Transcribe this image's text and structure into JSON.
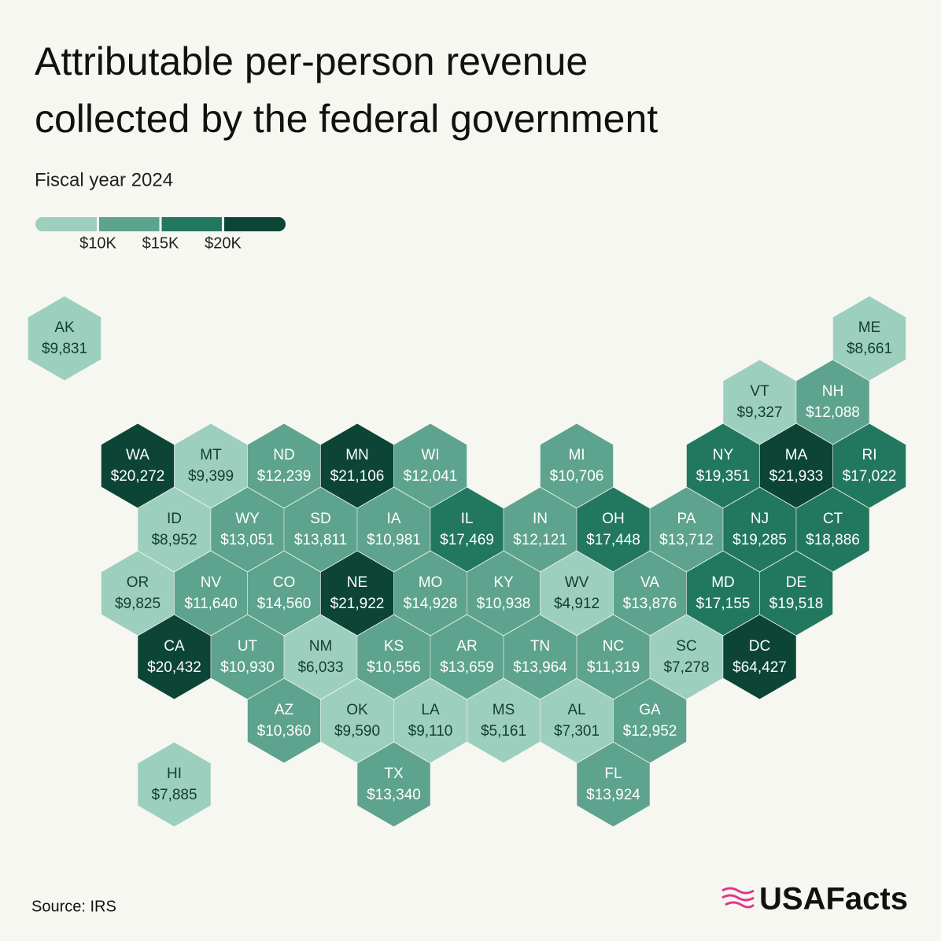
{
  "chart_data": {
    "type": "hexmap",
    "title": [
      "Attributable per-person revenue",
      "collected by the federal government"
    ],
    "subtitle": "Fiscal year 2024",
    "source": "Source: IRS",
    "brand": "USAFacts",
    "legend_ticks": [
      {
        "value": 10000,
        "label": "$10K"
      },
      {
        "value": 15000,
        "label": "$15K"
      },
      {
        "value": 20000,
        "label": "$20K"
      }
    ],
    "colors": [
      "#9dcfbf",
      "#5ea38e",
      "#22785f",
      "#0c4535"
    ],
    "states": [
      {
        "label": "AK",
        "value": 9831,
        "value_label": "$9,831"
      },
      {
        "label": "ME",
        "value": 8661,
        "value_label": "$8,661"
      },
      {
        "label": "VT",
        "value": 9327,
        "value_label": "$9,327"
      },
      {
        "label": "NH",
        "value": 12088,
        "value_label": "$12,088"
      },
      {
        "label": "WA",
        "value": 20272,
        "value_label": "$20,272"
      },
      {
        "label": "MT",
        "value": 9399,
        "value_label": "$9,399"
      },
      {
        "label": "ND",
        "value": 12239,
        "value_label": "$12,239"
      },
      {
        "label": "MN",
        "value": 21106,
        "value_label": "$21,106"
      },
      {
        "label": "WI",
        "value": 12041,
        "value_label": "$12,041"
      },
      {
        "label": "MI",
        "value": 10706,
        "value_label": "$10,706"
      },
      {
        "label": "NY",
        "value": 19351,
        "value_label": "$19,351"
      },
      {
        "label": "MA",
        "value": 21933,
        "value_label": "$21,933"
      },
      {
        "label": "RI",
        "value": 17022,
        "value_label": "$17,022"
      },
      {
        "label": "ID",
        "value": 8952,
        "value_label": "$8,952"
      },
      {
        "label": "WY",
        "value": 13051,
        "value_label": "$13,051"
      },
      {
        "label": "SD",
        "value": 13811,
        "value_label": "$13,811"
      },
      {
        "label": "IA",
        "value": 10981,
        "value_label": "$10,981"
      },
      {
        "label": "IL",
        "value": 17469,
        "value_label": "$17,469"
      },
      {
        "label": "IN",
        "value": 12121,
        "value_label": "$12,121"
      },
      {
        "label": "OH",
        "value": 17448,
        "value_label": "$17,448"
      },
      {
        "label": "PA",
        "value": 13712,
        "value_label": "$13,712"
      },
      {
        "label": "NJ",
        "value": 19285,
        "value_label": "$19,285"
      },
      {
        "label": "CT",
        "value": 18886,
        "value_label": "$18,886"
      },
      {
        "label": "OR",
        "value": 9825,
        "value_label": "$9,825"
      },
      {
        "label": "NV",
        "value": 11640,
        "value_label": "$11,640"
      },
      {
        "label": "CO",
        "value": 14560,
        "value_label": "$14,560"
      },
      {
        "label": "NE",
        "value": 21922,
        "value_label": "$21,922"
      },
      {
        "label": "MO",
        "value": 14928,
        "value_label": "$14,928"
      },
      {
        "label": "KY",
        "value": 10938,
        "value_label": "$10,938"
      },
      {
        "label": "WV",
        "value": 4912,
        "value_label": "$4,912"
      },
      {
        "label": "VA",
        "value": 13876,
        "value_label": "$13,876"
      },
      {
        "label": "MD",
        "value": 17155,
        "value_label": "$17,155"
      },
      {
        "label": "DE",
        "value": 19518,
        "value_label": "$19,518"
      },
      {
        "label": "CA",
        "value": 20432,
        "value_label": "$20,432"
      },
      {
        "label": "UT",
        "value": 10930,
        "value_label": "$10,930"
      },
      {
        "label": "NM",
        "value": 6033,
        "value_label": "$6,033"
      },
      {
        "label": "KS",
        "value": 10556,
        "value_label": "$10,556"
      },
      {
        "label": "AR",
        "value": 13659,
        "value_label": "$13,659"
      },
      {
        "label": "TN",
        "value": 13964,
        "value_label": "$13,964"
      },
      {
        "label": "NC",
        "value": 11319,
        "value_label": "$11,319"
      },
      {
        "label": "SC",
        "value": 7278,
        "value_label": "$7,278"
      },
      {
        "label": "DC",
        "value": 64427,
        "value_label": "$64,427"
      },
      {
        "label": "AZ",
        "value": 10360,
        "value_label": "$10,360"
      },
      {
        "label": "OK",
        "value": 9590,
        "value_label": "$9,590"
      },
      {
        "label": "LA",
        "value": 9110,
        "value_label": "$9,110"
      },
      {
        "label": "MS",
        "value": 5161,
        "value_label": "$5,161"
      },
      {
        "label": "AL",
        "value": 7301,
        "value_label": "$7,301"
      },
      {
        "label": "GA",
        "value": 12952,
        "value_label": "$12,952"
      },
      {
        "label": "HI",
        "value": 7885,
        "value_label": "$7,885"
      },
      {
        "label": "TX",
        "value": 13340,
        "value_label": "$13,340"
      },
      {
        "label": "FL",
        "value": 13924,
        "value_label": "$13,924"
      }
    ]
  }
}
